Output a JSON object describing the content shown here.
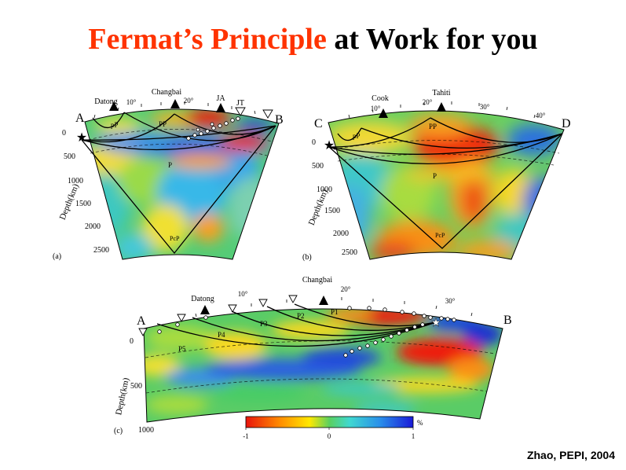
{
  "title": {
    "part_red": "Fermat’s Principle",
    "part_black": "at Work for you"
  },
  "citation": "Zhao, PEPI, 2004",
  "colors": {
    "title_red": "#ff3300",
    "slow": "#ee1c10",
    "fast": "#1e46dc",
    "neutral": "#44cc66"
  },
  "panels": [
    {
      "id": "a",
      "label": "(a)",
      "end_left": "A",
      "end_right": "B",
      "stations": [
        "Datong",
        "Changbai",
        "JA",
        "JT"
      ],
      "degree_ticks": [
        "10°",
        "20°"
      ],
      "rays": [
        "pP",
        "PP",
        "P",
        "PcP"
      ],
      "depth_ticks": [
        "0",
        "500",
        "1000",
        "1500",
        "2000",
        "2500"
      ],
      "depth_axis": "Depth(km)"
    },
    {
      "id": "b",
      "label": "(b)",
      "end_left": "C",
      "end_right": "D",
      "stations": [
        "Cook",
        "Tahiti"
      ],
      "degree_ticks": [
        "10°",
        "20°",
        "30°",
        "40°"
      ],
      "rays": [
        "pP",
        "PP",
        "P",
        "PcP"
      ],
      "depth_ticks": [
        "0",
        "500",
        "1000",
        "1500",
        "2000",
        "2500"
      ],
      "depth_axis": "Depth(km)"
    },
    {
      "id": "c",
      "label": "(c)",
      "end_left": "A",
      "end_right": "B",
      "stations": [
        "Datong",
        "Changbai"
      ],
      "degree_ticks": [
        "10°",
        "20°",
        "30°"
      ],
      "rays": [
        "P1",
        "P2",
        "P3",
        "P4",
        "P5"
      ],
      "depth_ticks": [
        "0",
        "500",
        "1000"
      ],
      "depth_axis": "Depth(km)"
    }
  ],
  "colorbar": {
    "ticks": [
      "-1",
      "0",
      "1"
    ],
    "unit": "%"
  }
}
